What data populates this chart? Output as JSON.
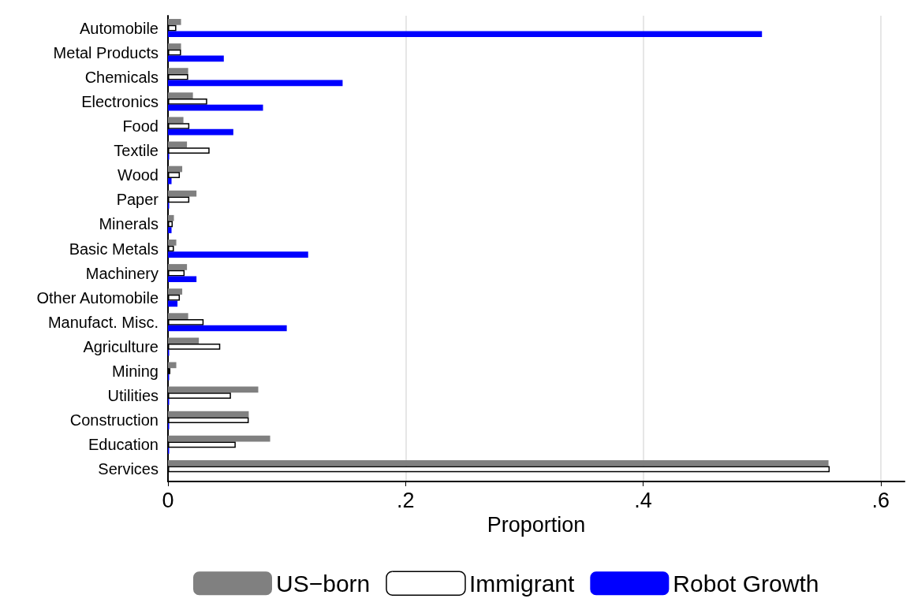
{
  "chart_data": {
    "type": "bar",
    "orientation": "horizontal",
    "xlabel": "Proportion",
    "categories": [
      "Automobile",
      "Metal Products",
      "Chemicals",
      "Electronics",
      "Food",
      "Textile",
      "Wood",
      "Paper",
      "Minerals",
      "Basic Metals",
      "Machinery",
      "Other Automobile",
      "Manufact. Misc.",
      "Agriculture",
      "Mining",
      "Utilities",
      "Construction",
      "Education",
      "Services"
    ],
    "series": [
      {
        "name": "US−born",
        "color": "#808080",
        "values": [
          0.011,
          0.011,
          0.017,
          0.021,
          0.013,
          0.016,
          0.012,
          0.024,
          0.005,
          0.007,
          0.016,
          0.012,
          0.017,
          0.026,
          0.007,
          0.076,
          0.068,
          0.086,
          0.556
        ]
      },
      {
        "name": "Immigrant",
        "color": "#ffffff",
        "values": [
          0.007,
          0.011,
          0.017,
          0.033,
          0.018,
          0.035,
          0.01,
          0.018,
          0.004,
          0.005,
          0.014,
          0.01,
          0.03,
          0.044,
          0.002,
          0.053,
          0.068,
          0.057,
          0.557
        ]
      },
      {
        "name": "Robot Growth",
        "color": "#0000ff",
        "values": [
          0.5,
          0.047,
          0.147,
          0.08,
          0.055,
          0.001,
          0.003,
          0.001,
          0.003,
          0.118,
          0.024,
          0.008,
          0.1,
          0.001,
          0.001,
          0.001,
          0.001,
          0.001,
          0
        ]
      }
    ],
    "xlim": [
      0,
      0.62
    ],
    "xticks": [
      0,
      {
        "value": 0.2,
        "label": ".2"
      },
      {
        "value": 0.4,
        "label": ".4"
      },
      {
        "value": 0.6,
        "label": ".6"
      }
    ],
    "grid": "x",
    "legend": "bottom"
  }
}
